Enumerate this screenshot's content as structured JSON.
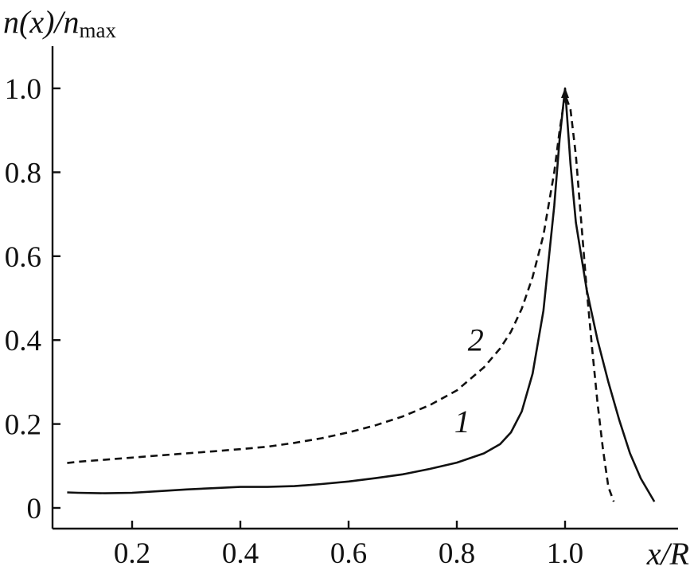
{
  "chart_data": {
    "type": "line",
    "title": "",
    "xlabel": "x/R",
    "ylabel": {
      "main": "n(x)/n",
      "subscript": "max"
    },
    "xlim": [
      0.05,
      1.2
    ],
    "ylim": [
      -0.05,
      1.1
    ],
    "xticks": [
      {
        "value": 0.2,
        "label": "0.2"
      },
      {
        "value": 0.4,
        "label": "0.4"
      },
      {
        "value": 0.6,
        "label": "0.6"
      },
      {
        "value": 0.8,
        "label": "0.8"
      },
      {
        "value": 1.0,
        "label": "1.0"
      }
    ],
    "yticks": [
      {
        "value": 0,
        "label": "0"
      },
      {
        "value": 0.2,
        "label": "0.2"
      },
      {
        "value": 0.4,
        "label": "0.4"
      },
      {
        "value": 0.6,
        "label": "0.6"
      },
      {
        "value": 0.8,
        "label": "0.8"
      },
      {
        "value": 1.0,
        "label": "1.0"
      }
    ],
    "grid": false,
    "legend": "none",
    "series": [
      {
        "label": "1",
        "line_style": "solid",
        "label_at": [
          0.81,
          0.18
        ],
        "x": [
          0.08,
          0.1,
          0.15,
          0.2,
          0.25,
          0.3,
          0.35,
          0.4,
          0.45,
          0.5,
          0.55,
          0.6,
          0.65,
          0.7,
          0.75,
          0.8,
          0.85,
          0.88,
          0.9,
          0.92,
          0.94,
          0.96,
          0.98,
          0.99,
          1.0,
          1.01,
          1.02,
          1.04,
          1.06,
          1.08,
          1.1,
          1.12,
          1.14,
          1.165
        ],
        "y": [
          0.037,
          0.036,
          0.035,
          0.036,
          0.04,
          0.044,
          0.047,
          0.05,
          0.05,
          0.052,
          0.057,
          0.063,
          0.071,
          0.08,
          0.093,
          0.108,
          0.13,
          0.152,
          0.18,
          0.23,
          0.32,
          0.47,
          0.72,
          0.88,
          1.0,
          0.82,
          0.68,
          0.52,
          0.4,
          0.3,
          0.21,
          0.13,
          0.07,
          0.015
        ]
      },
      {
        "label": "2",
        "line_style": "dashed",
        "label_at": [
          0.835,
          0.375
        ],
        "x": [
          0.08,
          0.1,
          0.15,
          0.2,
          0.25,
          0.3,
          0.35,
          0.4,
          0.45,
          0.5,
          0.55,
          0.6,
          0.65,
          0.7,
          0.75,
          0.8,
          0.85,
          0.88,
          0.9,
          0.92,
          0.94,
          0.96,
          0.98,
          0.99,
          1.0,
          1.01,
          1.02,
          1.03,
          1.04,
          1.05,
          1.06,
          1.07,
          1.08,
          1.09
        ],
        "y": [
          0.107,
          0.11,
          0.115,
          0.12,
          0.125,
          0.13,
          0.135,
          0.14,
          0.146,
          0.155,
          0.166,
          0.18,
          0.197,
          0.218,
          0.245,
          0.28,
          0.335,
          0.38,
          0.42,
          0.475,
          0.55,
          0.65,
          0.8,
          0.9,
          0.985,
          0.95,
          0.84,
          0.68,
          0.52,
          0.38,
          0.25,
          0.14,
          0.05,
          0.015
        ]
      }
    ]
  }
}
